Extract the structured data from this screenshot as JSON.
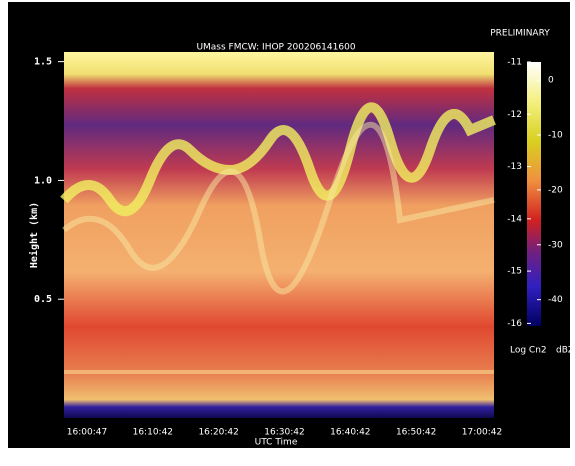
{
  "chart_data": {
    "type": "heatmap",
    "title": "UMass FMCW: IHOP 200206141600",
    "annotation": "PRELIMINARY",
    "x_label": "UTC Time",
    "y_label": "Height (km)",
    "categories": [
      "16:00:47",
      "16:10:42",
      "16:20:42",
      "16:30:42",
      "16:40:42",
      "16:50:42",
      "17:00:42"
    ],
    "ylim": [
      0,
      1.57
    ],
    "yticks": [
      0.5,
      {
        "value": 1,
        "label": "1.0"
      },
      1.5
    ],
    "colorbar": {
      "left_label": "Log Cn2",
      "right_label": "dBZ",
      "left_lim": [
        -16.05,
        -11
      ],
      "left_ticks": [
        -11,
        -12,
        -13,
        -14,
        -15,
        -16
      ],
      "right_lim": [
        -44.8,
        3.3
      ],
      "right_ticks": [
        0,
        -10,
        -20,
        -30,
        -40
      ]
    }
  }
}
